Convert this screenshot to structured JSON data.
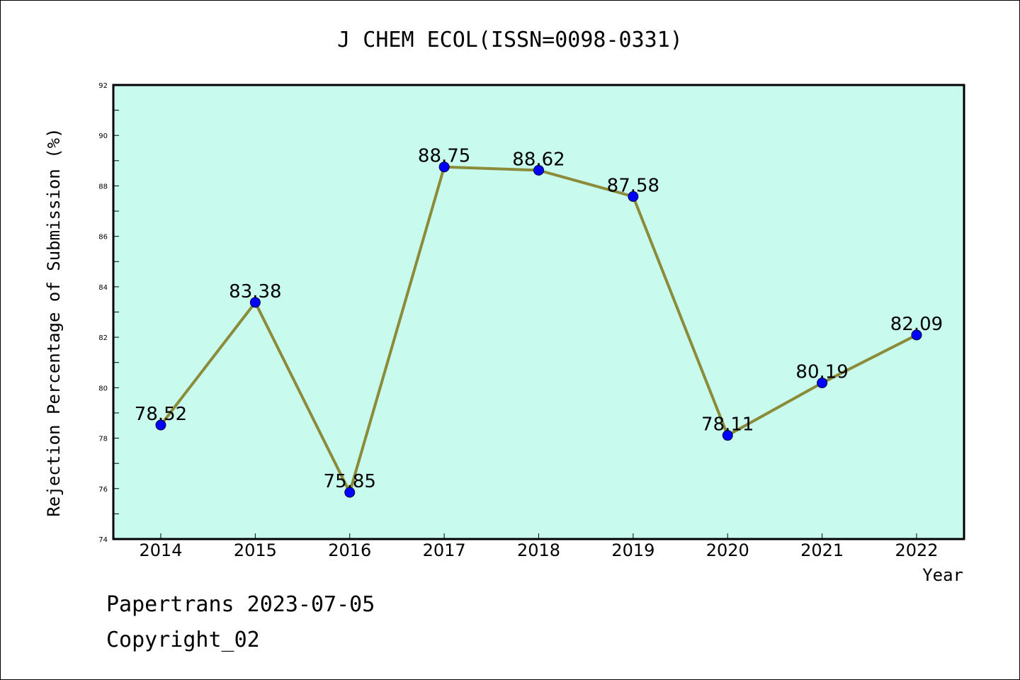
{
  "footer": {
    "line1": "Papertrans 2023-07-05",
    "line2": "Copyright_02"
  },
  "colors": {
    "plot_background": "#c8fbee",
    "line": "#8b8b3a",
    "marker": "#0000ff",
    "axis": "#000000"
  },
  "chart_data": {
    "type": "line",
    "title": "J CHEM ECOL(ISSN=0098-0331)",
    "xlabel": "Year",
    "ylabel": "Rejection Percentage of Submission (%)",
    "categories": [
      "2014",
      "2015",
      "2016",
      "2017",
      "2018",
      "2019",
      "2020",
      "2021",
      "2022"
    ],
    "series": [
      {
        "values": [
          78.52,
          83.38,
          75.85,
          88.75,
          88.62,
          87.58,
          78.11,
          80.19,
          82.09
        ],
        "data_labels": [
          "78.52",
          "83.38",
          "75.85",
          "88.75",
          "88.62",
          "87.58",
          "78.11",
          "80.19",
          "82.09"
        ]
      }
    ],
    "ylim": [
      74,
      92
    ],
    "yticks": [
      74,
      76,
      78,
      80,
      82,
      84,
      86,
      88,
      90,
      92
    ],
    "ytick_labels": [
      "74",
      "76",
      "78",
      "80",
      "82",
      "84",
      "86",
      "88",
      "90",
      "92"
    ],
    "grid": false,
    "legend": "none"
  }
}
